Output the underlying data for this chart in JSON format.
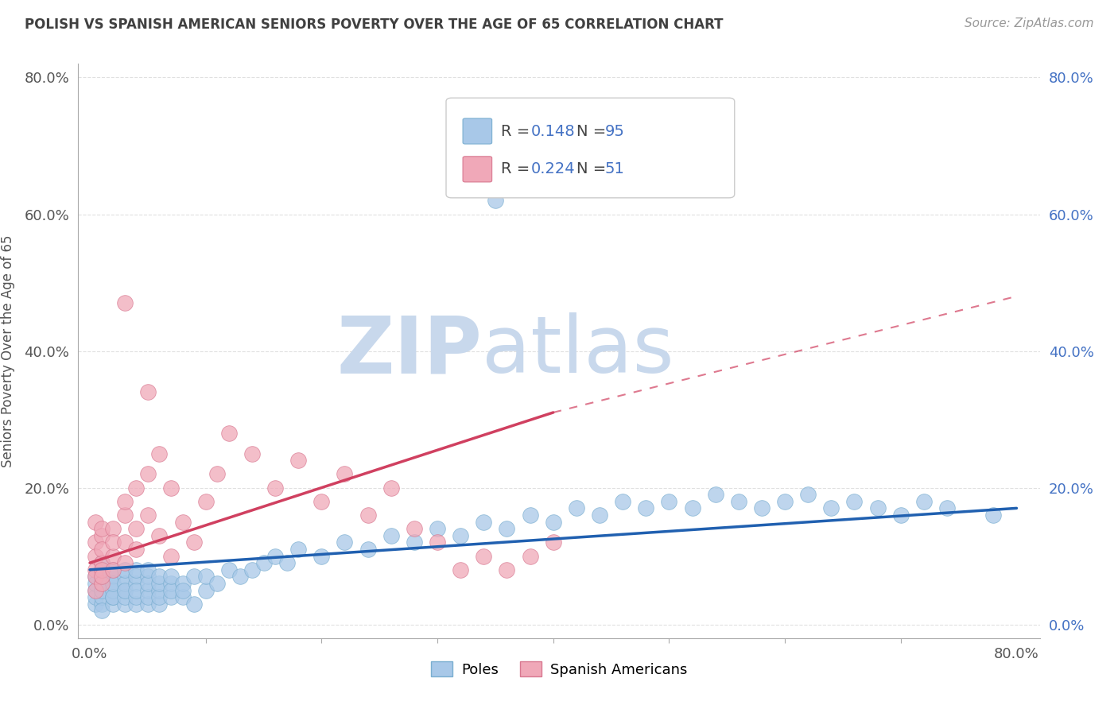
{
  "title": "POLISH VS SPANISH AMERICAN SENIORS POVERTY OVER THE AGE OF 65 CORRELATION CHART",
  "source": "Source: ZipAtlas.com",
  "ylabel": "Seniors Poverty Over the Age of 65",
  "ytick_labels": [
    "0.0%",
    "20.0%",
    "40.0%",
    "60.0%",
    "80.0%"
  ],
  "ytick_values": [
    0,
    20,
    40,
    60,
    80
  ],
  "xtick_labels": [
    "0.0%",
    "80.0%"
  ],
  "xtick_values": [
    0,
    80
  ],
  "xlim": [
    -1,
    82
  ],
  "ylim": [
    -2,
    82
  ],
  "legend_R_blue": "0.148",
  "legend_N_blue": "95",
  "legend_R_pink": "0.224",
  "legend_N_pink": "51",
  "blue_scatter_color": "#a8c8e8",
  "blue_scatter_edge": "#7aaed0",
  "pink_scatter_color": "#f0a8b8",
  "pink_scatter_edge": "#d87890",
  "blue_line_color": "#2060b0",
  "pink_line_color": "#d04060",
  "accent_blue": "#4472c4",
  "grid_color": "#e0e0e0",
  "bg_color": "#ffffff",
  "title_color": "#404040",
  "source_color": "#999999",
  "watermark_zip": "ZIP",
  "watermark_atlas": "atlas",
  "watermark_color": "#c8d8ec",
  "poles_x": [
    0.5,
    0.5,
    0.5,
    0.5,
    0.5,
    1,
    1,
    1,
    1,
    1,
    1,
    1,
    1,
    1,
    2,
    2,
    2,
    2,
    2,
    2,
    2,
    2,
    3,
    3,
    3,
    3,
    3,
    3,
    3,
    4,
    4,
    4,
    4,
    4,
    4,
    5,
    5,
    5,
    5,
    5,
    5,
    6,
    6,
    6,
    6,
    6,
    7,
    7,
    7,
    7,
    8,
    8,
    8,
    9,
    9,
    10,
    10,
    11,
    12,
    13,
    14,
    15,
    16,
    17,
    18,
    20,
    22,
    24,
    26,
    28,
    30,
    32,
    34,
    36,
    38,
    40,
    42,
    44,
    46,
    48,
    50,
    52,
    54,
    56,
    58,
    60,
    62,
    64,
    66,
    68,
    70,
    72,
    74,
    78,
    35
  ],
  "poles_y": [
    3,
    5,
    7,
    4,
    6,
    3,
    5,
    7,
    4,
    6,
    8,
    2,
    9,
    5,
    3,
    6,
    4,
    7,
    5,
    8,
    4,
    6,
    3,
    5,
    7,
    4,
    6,
    8,
    5,
    3,
    6,
    4,
    7,
    5,
    8,
    3,
    5,
    7,
    4,
    6,
    8,
    3,
    5,
    4,
    6,
    7,
    4,
    6,
    5,
    7,
    4,
    6,
    5,
    3,
    7,
    5,
    7,
    6,
    8,
    7,
    8,
    9,
    10,
    9,
    11,
    10,
    12,
    11,
    13,
    12,
    14,
    13,
    15,
    14,
    16,
    15,
    17,
    16,
    18,
    17,
    18,
    17,
    19,
    18,
    17,
    18,
    19,
    17,
    18,
    17,
    16,
    18,
    17,
    16,
    62
  ],
  "spanish_x": [
    0.5,
    0.5,
    0.5,
    0.5,
    0.5,
    0.5,
    1,
    1,
    1,
    1,
    1,
    1,
    1,
    2,
    2,
    2,
    2,
    3,
    3,
    3,
    3,
    4,
    4,
    4,
    5,
    5,
    6,
    6,
    7,
    7,
    8,
    9,
    10,
    11,
    12,
    14,
    16,
    18,
    20,
    22,
    24,
    26,
    28,
    30,
    32,
    34,
    36,
    38,
    40,
    3,
    5
  ],
  "spanish_y": [
    5,
    8,
    12,
    15,
    10,
    7,
    6,
    9,
    13,
    11,
    8,
    14,
    7,
    10,
    14,
    8,
    12,
    9,
    16,
    12,
    18,
    11,
    20,
    14,
    22,
    16,
    13,
    25,
    10,
    20,
    15,
    12,
    18,
    22,
    28,
    25,
    20,
    24,
    18,
    22,
    16,
    20,
    14,
    12,
    8,
    10,
    8,
    10,
    12,
    47,
    34
  ],
  "blue_trend_start_y": 8,
  "blue_trend_end_y": 17,
  "pink_trend_start_y": 9,
  "pink_trend_end_y": 31,
  "pink_dashed_end_y": 48
}
